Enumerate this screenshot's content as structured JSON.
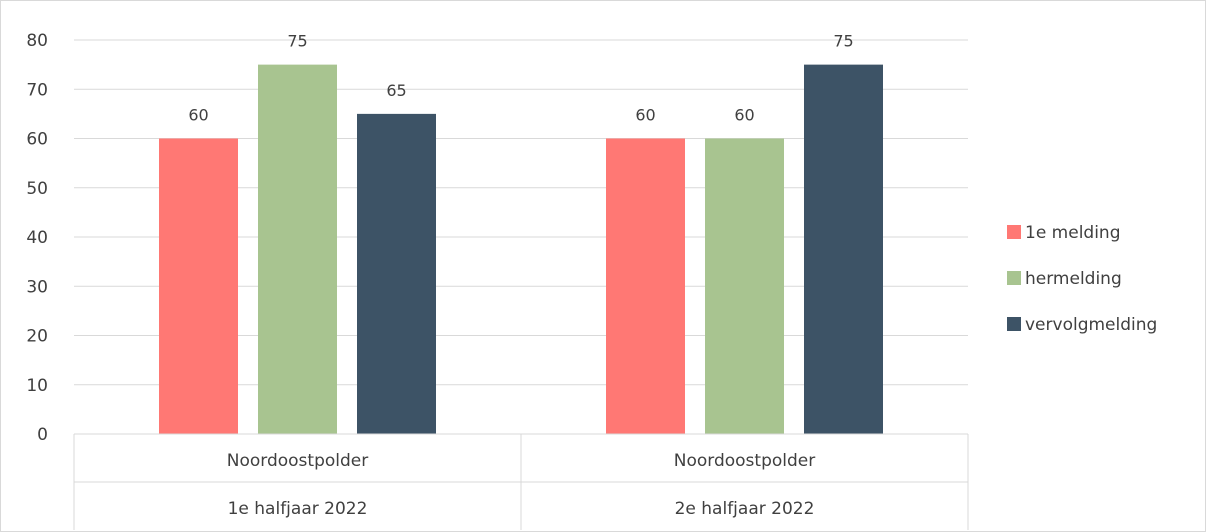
{
  "chart_data": {
    "type": "bar",
    "title": "",
    "xlabel": "",
    "ylabel": "",
    "ylim": [
      0,
      80
    ],
    "yticks": [
      "0",
      "10",
      "20",
      "30",
      "40",
      "50",
      "60",
      "70",
      "80"
    ],
    "categories": [
      {
        "line1": "Noordoostpolder",
        "line2": "1e halfjaar 2022"
      },
      {
        "line1": "Noordoostpolder",
        "line2": "2e halfjaar 2022"
      }
    ],
    "series": [
      {
        "name": "1e melding",
        "color": "#ff7874",
        "values": [
          60,
          60
        ]
      },
      {
        "name": "hermelding",
        "color": "#a8c490",
        "values": [
          75,
          60
        ]
      },
      {
        "name": "vervolgmelding",
        "color": "#3d5366",
        "values": [
          65,
          75
        ]
      }
    ],
    "grid": true,
    "legend_position": "right"
  }
}
